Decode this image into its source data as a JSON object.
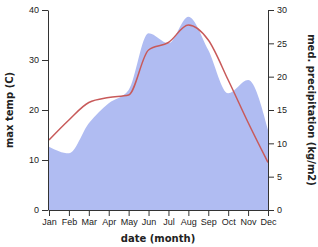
{
  "chart_data": {
    "type": "line",
    "x_label": "date (month)",
    "y_label": "max temp (C)",
    "y2_label": "med. precipitation (kg/m2)",
    "categories": [
      "Jan",
      "Feb",
      "Mar",
      "Apr",
      "May",
      "Jun",
      "Jul",
      "Aug",
      "Sep",
      "Oct",
      "Nov",
      "Dec"
    ],
    "series": [
      {
        "name": "max temp",
        "type": "line",
        "color": "#c85a5a",
        "values": [
          14,
          18,
          21.5,
          22.5,
          23,
          32,
          33.5,
          37,
          34,
          26,
          17.5,
          9.5
        ]
      },
      {
        "name": "med. precipitation",
        "type": "area",
        "axis": "y2",
        "color": "#b0bcf2",
        "values": [
          9.5,
          8.5,
          13,
          16,
          18,
          26.5,
          25,
          29,
          24,
          17.5,
          19.5,
          12
        ]
      }
    ],
    "ylim": [
      0,
      40
    ],
    "yticks": [
      0,
      10,
      20,
      30,
      40
    ],
    "y2lim": [
      0,
      30
    ],
    "y2ticks": [
      0,
      5,
      10,
      15,
      20,
      25,
      30
    ]
  }
}
